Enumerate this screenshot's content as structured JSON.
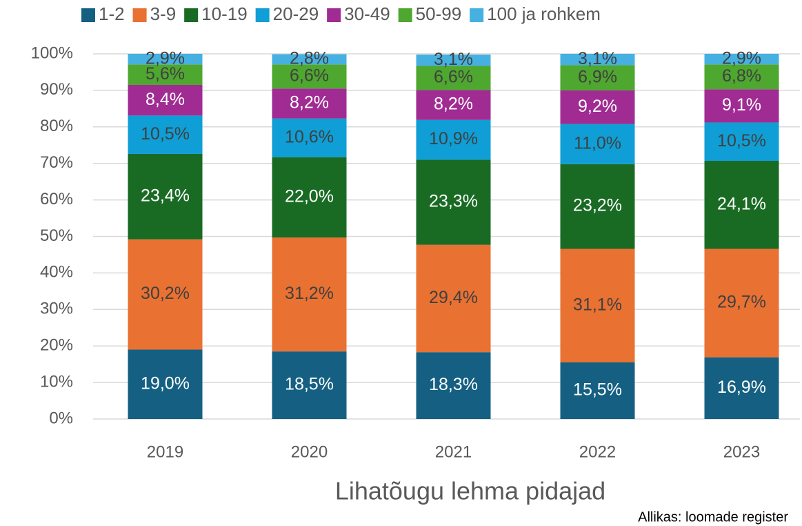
{
  "chart_data": {
    "type": "stacked_bar",
    "x_label": "Lihatõugu lehma pidajad",
    "source": "Allikas: loomade register",
    "categories": [
      "2019",
      "2020",
      "2021",
      "2022",
      "2023"
    ],
    "ylim": [
      0,
      100
    ],
    "yticks": [
      {
        "value": 0,
        "label": "0%"
      },
      {
        "value": 10,
        "label": "10%"
      },
      {
        "value": 20,
        "label": "20%"
      },
      {
        "value": 30,
        "label": "30%"
      },
      {
        "value": 40,
        "label": "40%"
      },
      {
        "value": 50,
        "label": "50%"
      },
      {
        "value": 60,
        "label": "60%"
      },
      {
        "value": 70,
        "label": "70%"
      },
      {
        "value": 80,
        "label": "80%"
      },
      {
        "value": 90,
        "label": "90%"
      },
      {
        "value": 100,
        "label": "100%"
      }
    ],
    "grid": true,
    "legend": "top",
    "series": [
      {
        "name": "1-2",
        "color": "#156082",
        "label_color": "#ffffff",
        "values": [
          19.0,
          18.5,
          18.3,
          15.5,
          16.9
        ],
        "value_labels": [
          "19,0%",
          "18,5%",
          "18,3%",
          "15,5%",
          "16,9%"
        ]
      },
      {
        "name": "3-9",
        "color": "#e97132",
        "label_color": "#404040",
        "values": [
          30.2,
          31.2,
          29.4,
          31.1,
          29.7
        ],
        "value_labels": [
          "30,2%",
          "31,2%",
          "29,4%",
          "31,1%",
          "29,7%"
        ]
      },
      {
        "name": "10-19",
        "color": "#196b24",
        "label_color": "#ffffff",
        "values": [
          23.4,
          22.0,
          23.3,
          23.2,
          24.1
        ],
        "value_labels": [
          "23,4%",
          "22,0%",
          "23,3%",
          "23,2%",
          "24,1%"
        ]
      },
      {
        "name": "20-29",
        "color": "#0f9ed5",
        "label_color": "#404040",
        "values": [
          10.5,
          10.6,
          10.9,
          11.0,
          10.5
        ],
        "value_labels": [
          "10,5%",
          "10,6%",
          "10,9%",
          "11,0%",
          "10,5%"
        ]
      },
      {
        "name": "30-49",
        "color": "#a02b93",
        "label_color": "#ffffff",
        "values": [
          8.4,
          8.2,
          8.2,
          9.2,
          9.1
        ],
        "value_labels": [
          "8,4%",
          "8,2%",
          "8,2%",
          "9,2%",
          "9,1%"
        ]
      },
      {
        "name": "50-99",
        "color": "#4ea72e",
        "label_color": "#404040",
        "values": [
          5.6,
          6.6,
          6.6,
          6.9,
          6.8
        ],
        "value_labels": [
          "5,6%",
          "6,6%",
          "6,6%",
          "6,9%",
          "6,8%"
        ]
      },
      {
        "name": "100 ja rohkem",
        "color": "#46b1e1",
        "label_color": "#404040",
        "values": [
          2.9,
          2.8,
          3.1,
          3.1,
          2.9
        ],
        "value_labels": [
          "2,9%",
          "2,8%",
          "3,1%",
          "3,1%",
          "2,9%"
        ]
      }
    ]
  }
}
